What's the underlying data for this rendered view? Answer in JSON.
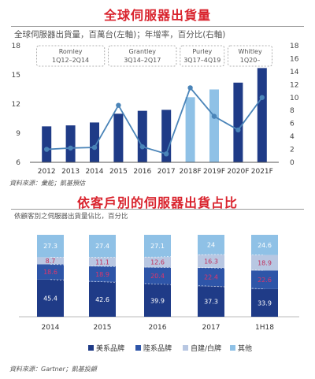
{
  "chart_data": [
    {
      "type": "bar",
      "title": "全球伺服器出貨量",
      "subtitle": "全球伺服器出貨量，百萬台(左軸)；年增率，百分比(右軸)",
      "source": "資料來源：彙能；凱基預估",
      "categories": [
        "2012",
        "2013",
        "2014",
        "2015",
        "2016",
        "2017",
        "2018F",
        "2019F",
        "2020F",
        "2021F"
      ],
      "series": [
        {
          "kind": "bar",
          "axis": "left",
          "values": [
            9.7,
            9.8,
            10.1,
            11.0,
            11.3,
            11.4,
            12.7,
            13.5,
            14.2,
            15.7
          ],
          "colors": [
            "#1f3b87",
            "#1f3b87",
            "#1f3b87",
            "#1f3b87",
            "#1f3b87",
            "#1f3b87",
            "#8fc1e6",
            "#8fc1e6",
            "#1f3b87",
            "#1f3b87"
          ]
        },
        {
          "kind": "line",
          "axis": "right",
          "color": "#4a84b8",
          "values": [
            2.0,
            2.2,
            2.3,
            8.8,
            2.4,
            1.3,
            11.5,
            7.1,
            5.0,
            10.0
          ]
        }
      ],
      "ylim_left": [
        6,
        18
      ],
      "yticks_left": [
        6,
        9,
        12,
        15,
        18
      ],
      "ylim_right": [
        0,
        18
      ],
      "yticks_right": [
        0,
        2,
        4,
        6,
        8,
        10,
        12,
        14,
        16,
        18
      ],
      "annotations": [
        {
          "name": "Romley",
          "period": "1Q12–2Q14"
        },
        {
          "name": "Grantley",
          "period": "3Q14–2Q17"
        },
        {
          "name": "Purley",
          "period": "3Q17–4Q19"
        },
        {
          "name": "Whitley",
          "period": "1Q20–"
        }
      ]
    },
    {
      "type": "bar",
      "stacked": true,
      "title": "依客戶別的伺服器出貨占比",
      "subtitle": "依顧客別之伺服器出貨量佔比，百分比",
      "source": "資料來源：Gartner；凱基投顧",
      "categories": [
        "2014",
        "2015",
        "2016",
        "2017",
        "1H18"
      ],
      "series": [
        {
          "name": "美系品牌",
          "color": "#1f3b87",
          "values": [
            45.4,
            42.6,
            39.9,
            37.3,
            33.9
          ]
        },
        {
          "name": "陸系品牌",
          "color": "#2e55a8",
          "values": [
            18.6,
            18.9,
            20.4,
            22.4,
            22.6
          ]
        },
        {
          "name": "自建/白牌",
          "color": "#b8c7e2",
          "values": [
            8.7,
            11.1,
            12.6,
            16.3,
            18.9
          ]
        },
        {
          "name": "其他",
          "color": "#8fc1e6",
          "values": [
            27.3,
            27.4,
            27.1,
            24.0,
            24.6
          ]
        }
      ],
      "label_colors": [
        "#ffffff",
        "#e0356a",
        "#c0305c",
        "#ffffff"
      ],
      "ylim": [
        0,
        100
      ]
    }
  ]
}
